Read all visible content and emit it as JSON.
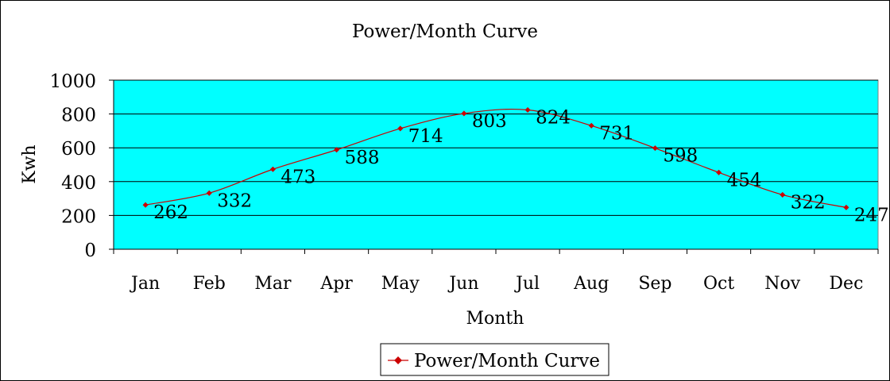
{
  "chart_data": {
    "type": "line",
    "title": "Power/Month Curve",
    "xlabel": "Month",
    "ylabel": "Kwh",
    "categories": [
      "Jan",
      "Feb",
      "Mar",
      "Apr",
      "May",
      "Jun",
      "Jul",
      "Aug",
      "Sep",
      "Oct",
      "Nov",
      "Dec"
    ],
    "series": [
      {
        "name": "Power/Month Curve",
        "values": [
          262,
          332,
          473,
          588,
          714,
          803,
          824,
          731,
          598,
          454,
          322,
          247
        ]
      }
    ],
    "ylim": [
      0,
      1000
    ],
    "yticks": [
      0,
      200,
      400,
      600,
      800,
      1000
    ],
    "grid": true,
    "legend": "bottom-center",
    "colors": {
      "plot_bg": "#00ffff",
      "line": "#cc0000",
      "marker": "#cc0000",
      "grid": "#000000"
    }
  }
}
